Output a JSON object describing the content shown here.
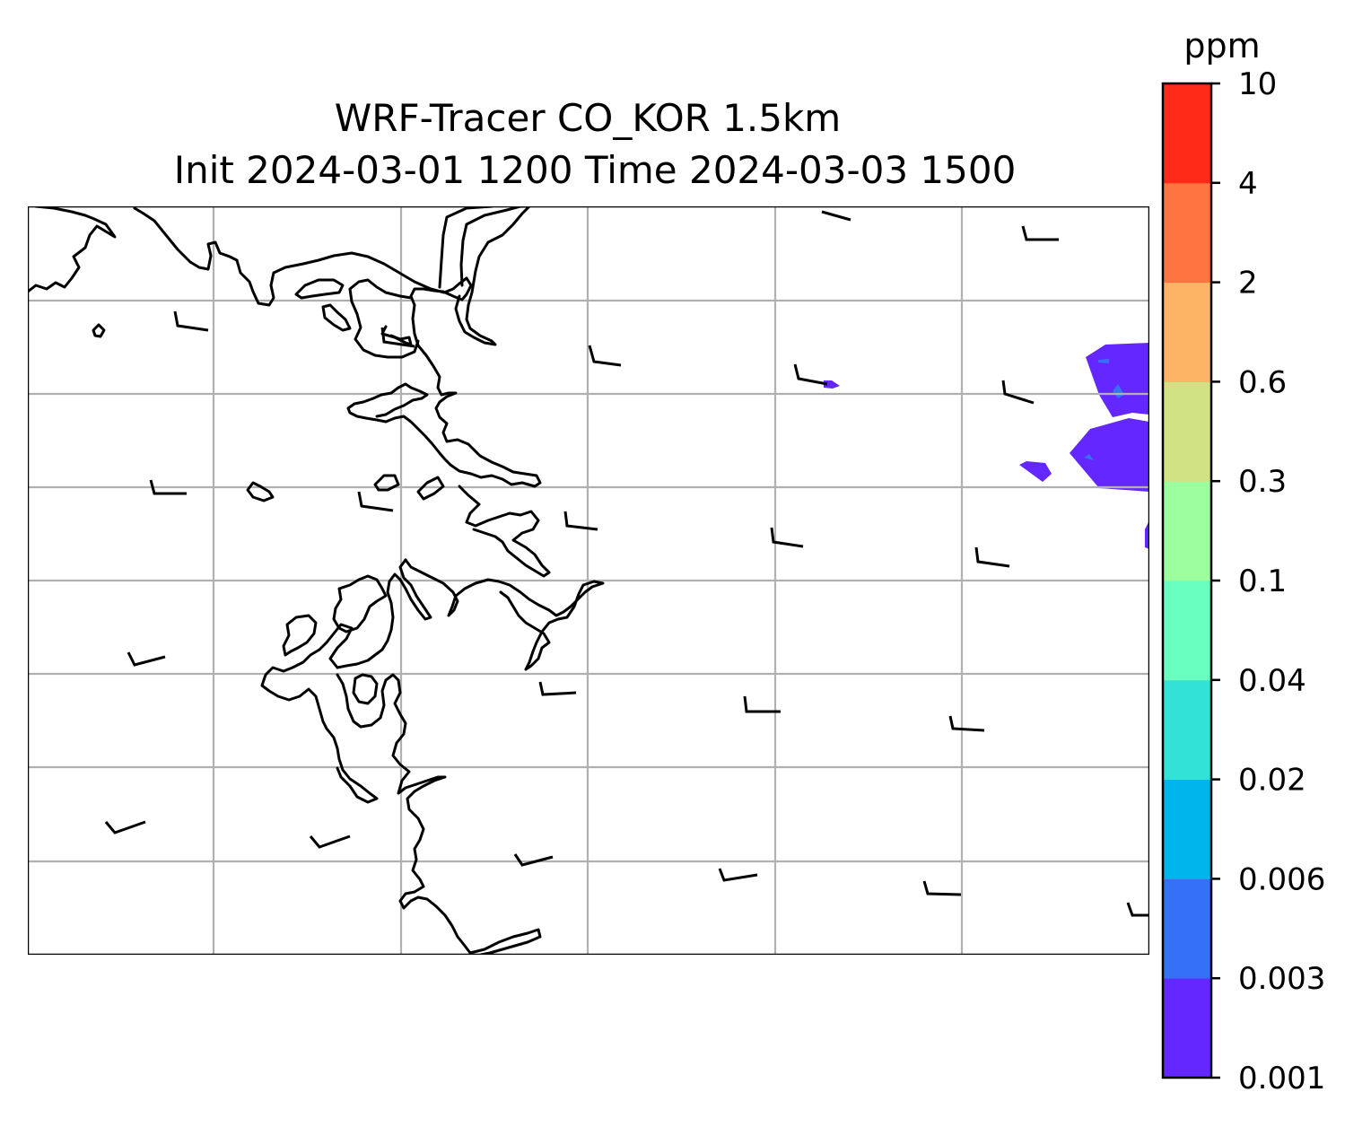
{
  "title": {
    "line1": "WRF-Tracer CO_KOR 1.5km",
    "line2": "Init 2024-03-01 1200 Time 2024-03-03 1500"
  },
  "colorbar": {
    "unit": "ppm",
    "levels": [
      "0.001",
      "0.003",
      "0.006",
      "0.02",
      "0.04",
      "0.1",
      "0.3",
      "0.6",
      "2",
      "4",
      "10"
    ],
    "colors": [
      "#6427ff",
      "#3471f6",
      "#00b4ec",
      "#32e2d6",
      "#69ffc0",
      "#9cfe9f",
      "#d1e284",
      "#fdb464",
      "#ff7440",
      "#ff2a18"
    ]
  },
  "map": {
    "gridlines": true,
    "coastline_color": "#000000",
    "wind_barbs": "10 kt barbs at regular grid points",
    "co_concentration_band": "0.001–0.003 ppm patches near east edge"
  }
}
